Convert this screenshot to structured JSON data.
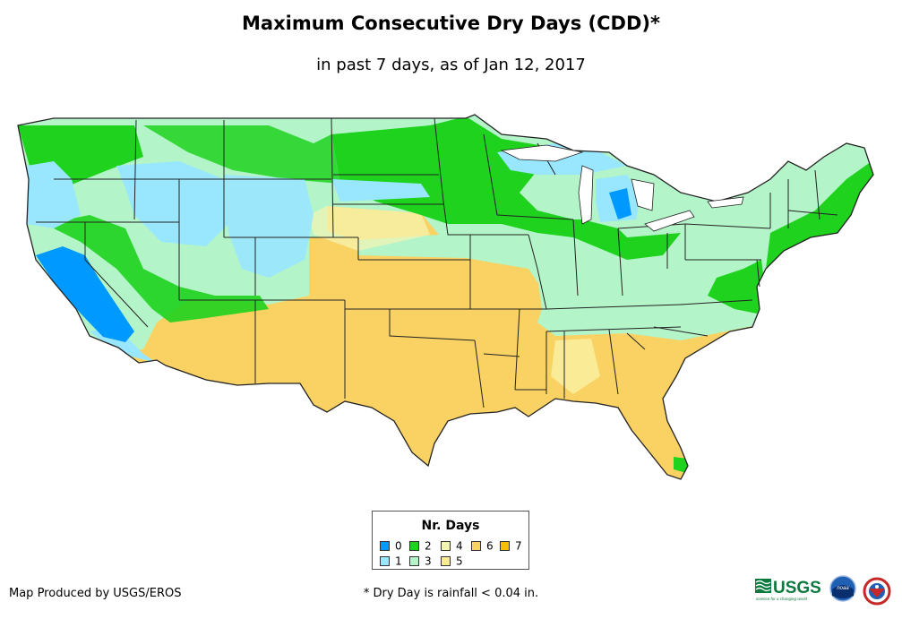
{
  "title": "Maximum Consecutive Dry Days (CDD)*",
  "subtitle": "in past 7 days, as of Jan 12, 2017",
  "legend": {
    "title": "Nr. Days",
    "items": [
      {
        "label": "0",
        "color": "#0099ff"
      },
      {
        "label": "1",
        "color": "#99e6ff"
      },
      {
        "label": "2",
        "color": "#1ed21e"
      },
      {
        "label": "3",
        "color": "#b3f5c8"
      },
      {
        "label": "4",
        "color": "#f5f5b3"
      },
      {
        "label": "5",
        "color": "#faeb96"
      },
      {
        "label": "6",
        "color": "#fad264"
      },
      {
        "label": "7",
        "color": "#f5be00"
      }
    ]
  },
  "footer": {
    "credit": "Map Produced by USGS/EROS",
    "footnote": "* Dry Day is rainfall < 0.04 in.",
    "logos": {
      "usgs": "USGS",
      "usgs_tagline": "science for a changing world",
      "noaa": "noaa"
    }
  }
}
